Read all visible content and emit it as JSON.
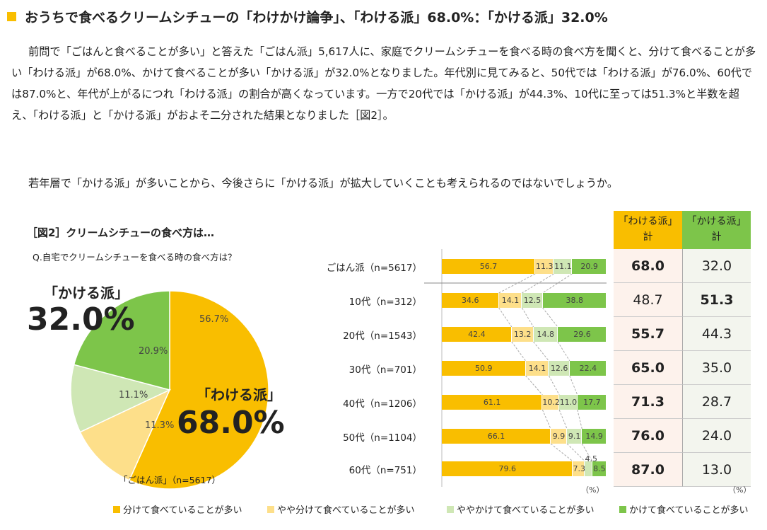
{
  "title": "おうちで食べるクリームシチューの「わけかけ論争」、「わける派」68.0%：「かける派」32.0%",
  "paragraph1": "前問で「ごはんと食べることが多い」と答えた「ごはん派」5,617人に、家庭でクリームシチューを食べる時の食べ方を聞くと、分けて食べることが多い「わける派」が68.0%、かけて食べることが多い「かける派」が32.0%となりました。年代別に見てみると、50代では「わける派」が76.0%、60代では87.0%と、年代が上がるにつれ「わける派」の割合が高くなっています。一方で20代では「かける派」が44.3%、10代に至っては51.3%と半数を超え、「わける派」と「かける派」がおよそ二分された結果となりました［図2］。",
  "paragraph2": "若年層で「かける派」が多いことから、今後さらに「かける派」が拡大していくことも考えられるのではないでしょうか。",
  "colors": {
    "accent": "#f9be00",
    "wakeru": "#f9be00",
    "yaya_wakeru": "#fddf8a",
    "yaya_kakeru": "#cfe7b5",
    "kakeru": "#7dc54a"
  },
  "chart_data": [
    {
      "type": "pie",
      "title": "［図2］クリームシチューの食べ方は…",
      "subtitle": "Q.自宅でクリームシチューを食べる時の食べ方は？",
      "caption": "「ごはん派」（n=5617）",
      "slices": [
        {
          "value": 56.7,
          "label": "56.7%"
        },
        {
          "value": 11.3,
          "label": "11.3%"
        },
        {
          "value": 11.1,
          "label": "11.1%"
        },
        {
          "value": 20.9,
          "label": "20.9%"
        }
      ],
      "annotations": {
        "wakeru_label": "「わける派」",
        "wakeru_pct": "68.0%",
        "kakeru_label": "「かける派」",
        "kakeru_pct": "32.0%"
      }
    },
    {
      "type": "bar",
      "orientation": "horizontal",
      "stacked": true,
      "unit": "（%）",
      "xlim": [
        0,
        100
      ],
      "categories": [
        "ごはん派（n=5617）",
        "10代（n=312）",
        "20代（n=1543）",
        "30代（n=701）",
        "40代（n=1206）",
        "50代（n=1104）",
        "60代（n=751）"
      ],
      "series": [
        {
          "name": "分けて食べていることが多い",
          "values": [
            56.7,
            34.6,
            42.4,
            50.9,
            61.1,
            66.1,
            79.6
          ]
        },
        {
          "name": "やや分けて食べていることが多い",
          "values": [
            11.3,
            14.1,
            13.2,
            14.1,
            10.2,
            9.9,
            7.3
          ]
        },
        {
          "name": "ややかけて食べていることが多い",
          "values": [
            11.1,
            12.5,
            14.8,
            12.6,
            11.0,
            9.1,
            4.5
          ]
        },
        {
          "name": "かけて食べていることが多い",
          "values": [
            20.9,
            38.8,
            29.6,
            22.4,
            17.7,
            14.9,
            8.5
          ]
        }
      ]
    },
    {
      "type": "table",
      "unit": "（%）",
      "headers": [
        [
          "「わける派」",
          "計"
        ],
        [
          "「かける派」",
          "計"
        ]
      ],
      "rows": [
        [
          "68.0",
          "32.0"
        ],
        [
          "48.7",
          "51.3"
        ],
        [
          "55.7",
          "44.3"
        ],
        [
          "65.0",
          "35.0"
        ],
        [
          "71.3",
          "28.7"
        ],
        [
          "76.0",
          "24.0"
        ],
        [
          "87.0",
          "13.0"
        ]
      ],
      "bold": [
        0,
        1,
        0,
        0,
        0,
        0,
        0
      ]
    }
  ]
}
